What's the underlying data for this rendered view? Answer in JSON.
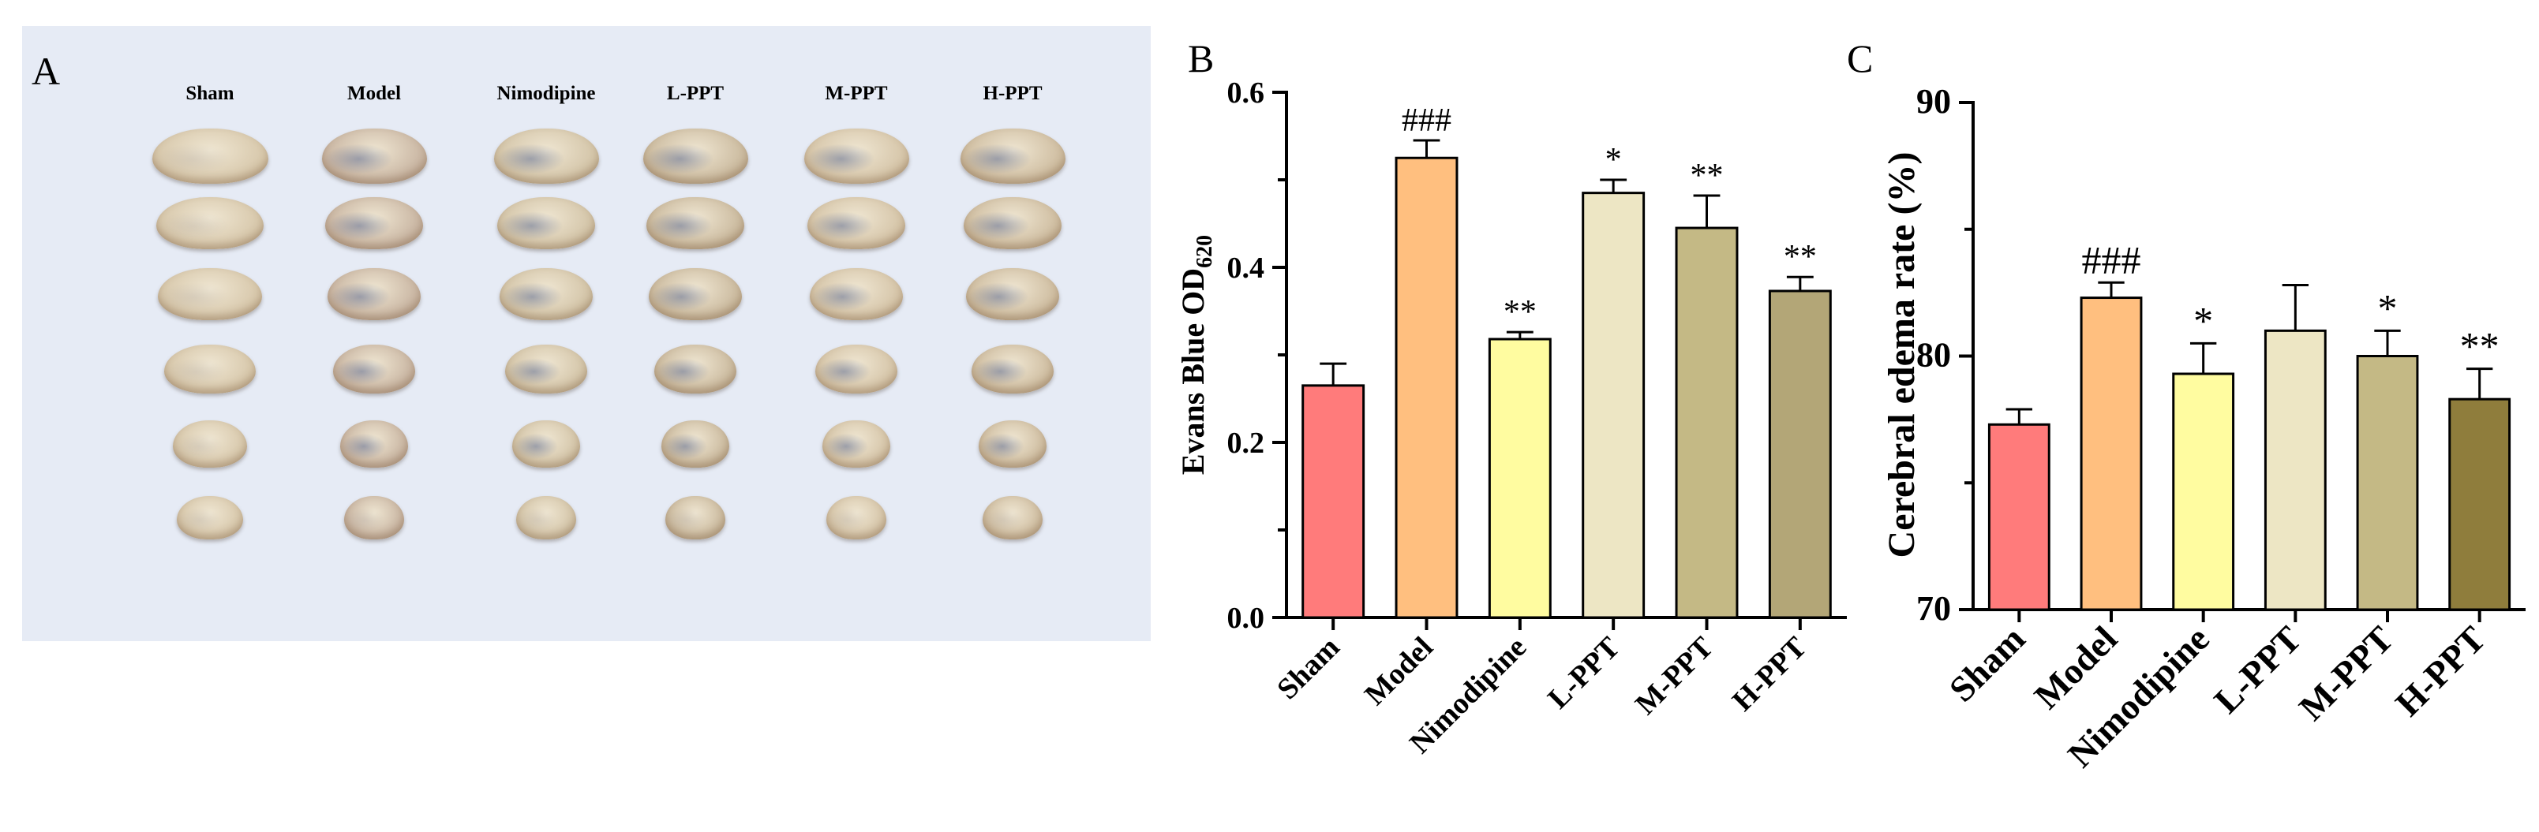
{
  "panel_a": {
    "letter": "A",
    "columns": [
      "Sham",
      "Model",
      "Nimodipine",
      "L-PPT",
      "M-PPT",
      "H-PPT"
    ]
  },
  "colors": {
    "panel_a_bg": "#e6ebf5",
    "groups": [
      "#ff7b7b",
      "#ffbf7f",
      "#fffca0",
      "#ede6c4",
      "#c4b985",
      "#b3a677"
    ],
    "groups_c": [
      "#ff7b7b",
      "#ffbf7f",
      "#fffca0",
      "#ede6c4",
      "#c4b985",
      "#8f7d3c"
    ]
  },
  "chart_data": [
    {
      "panel": "B",
      "type": "bar",
      "categories": [
        "Sham",
        "Model",
        "Nimodipine",
        "L-PPT",
        "M-PPT",
        "H-PPT"
      ],
      "values": [
        0.265,
        0.525,
        0.318,
        0.485,
        0.445,
        0.373
      ],
      "errors": [
        0.025,
        0.02,
        0.008,
        0.015,
        0.037,
        0.016
      ],
      "annotations": [
        "",
        "###",
        "**",
        "*",
        "**",
        "**"
      ],
      "ylabel_main": "Evans Blue OD",
      "ylabel_sub": "620",
      "ylim": [
        0,
        0.6
      ],
      "yticks": [
        "0.0",
        "0.2",
        "0.4",
        "0.6"
      ],
      "ytick_values": [
        0,
        0.2,
        0.4,
        0.6
      ]
    },
    {
      "panel": "C",
      "type": "bar",
      "categories": [
        "Sham",
        "Model",
        "Nimodipine",
        "L-PPT",
        "M-PPT",
        "H-PPT"
      ],
      "values": [
        77.3,
        82.3,
        79.3,
        81.0,
        80.0,
        78.3
      ],
      "errors": [
        0.6,
        0.6,
        1.2,
        1.8,
        1.0,
        1.2
      ],
      "annotations": [
        "",
        "###",
        "*",
        "",
        "*",
        "**"
      ],
      "ylabel": "Cerebral edema rate (%)",
      "ylim": [
        70,
        90
      ],
      "yticks": [
        "70",
        "80",
        "90"
      ],
      "ytick_values": [
        70,
        80,
        90
      ]
    }
  ]
}
